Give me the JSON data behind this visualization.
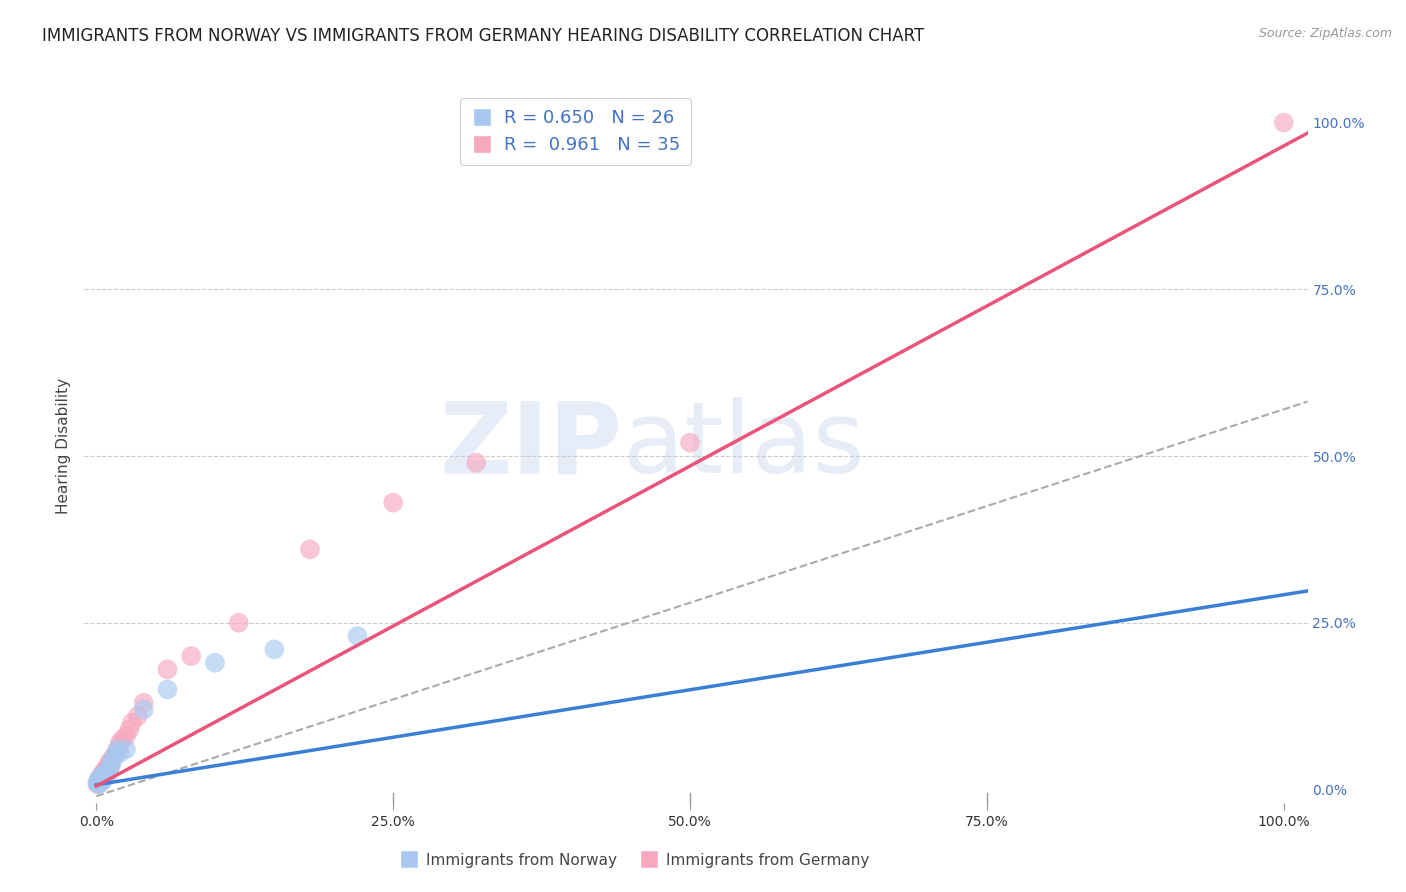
{
  "title": "IMMIGRANTS FROM NORWAY VS IMMIGRANTS FROM GERMANY HEARING DISABILITY CORRELATION CHART",
  "source": "Source: ZipAtlas.com",
  "ylabel": "Hearing Disability",
  "norway_label": "Immigrants from Norway",
  "germany_label": "Immigrants from Germany",
  "norway_R": 0.65,
  "norway_N": 26,
  "germany_R": 0.961,
  "germany_N": 35,
  "norway_color": "#a8c8f0",
  "germany_color": "#f5a8be",
  "norway_line_color": "#3a7fd5",
  "germany_line_color": "#e8547a",
  "norway_x": [
    0.001,
    0.002,
    0.002,
    0.003,
    0.003,
    0.004,
    0.005,
    0.005,
    0.006,
    0.006,
    0.007,
    0.008,
    0.009,
    0.01,
    0.011,
    0.012,
    0.013,
    0.015,
    0.018,
    0.02,
    0.025,
    0.04,
    0.06,
    0.1,
    0.15,
    0.22
  ],
  "norway_y": [
    0.01,
    0.015,
    0.008,
    0.01,
    0.012,
    0.018,
    0.015,
    0.012,
    0.02,
    0.018,
    0.022,
    0.025,
    0.02,
    0.028,
    0.03,
    0.035,
    0.04,
    0.05,
    0.06,
    0.055,
    0.06,
    0.12,
    0.15,
    0.19,
    0.21,
    0.23
  ],
  "germany_x": [
    0.001,
    0.002,
    0.002,
    0.003,
    0.003,
    0.004,
    0.004,
    0.005,
    0.005,
    0.006,
    0.006,
    0.007,
    0.008,
    0.009,
    0.01,
    0.011,
    0.012,
    0.013,
    0.015,
    0.018,
    0.02,
    0.022,
    0.025,
    0.028,
    0.03,
    0.035,
    0.04,
    0.06,
    0.08,
    0.12,
    0.18,
    0.25,
    0.32,
    0.5,
    1.0
  ],
  "germany_y": [
    0.008,
    0.01,
    0.012,
    0.015,
    0.012,
    0.018,
    0.02,
    0.022,
    0.018,
    0.025,
    0.02,
    0.028,
    0.03,
    0.032,
    0.035,
    0.04,
    0.038,
    0.045,
    0.05,
    0.06,
    0.07,
    0.075,
    0.08,
    0.09,
    0.1,
    0.11,
    0.13,
    0.18,
    0.2,
    0.25,
    0.36,
    0.43,
    0.49,
    0.52,
    1.0
  ],
  "norway_slope": 0.285,
  "norway_intercept": 0.007,
  "germany_slope": 0.96,
  "germany_intercept": 0.005,
  "diag_slope": 0.58,
  "diag_intercept": -0.01,
  "xlim": [
    -0.01,
    1.02
  ],
  "ylim": [
    -0.02,
    1.05
  ],
  "xticks": [
    0.0,
    0.25,
    0.5,
    0.75,
    1.0
  ],
  "yticks": [
    0.0,
    0.25,
    0.5,
    0.75,
    1.0
  ],
  "xtick_labels": [
    "0.0%",
    "25.0%",
    "50.0%",
    "75.0%",
    "100.0%"
  ],
  "ytick_labels_right": [
    "0.0%",
    "25.0%",
    "50.0%",
    "75.0%",
    "100.0%"
  ],
  "watermark_zip": "ZIP",
  "watermark_atlas": "atlas",
  "background_color": "#ffffff",
  "grid_color": "#cccccc",
  "title_fontsize": 12,
  "label_fontsize": 11
}
